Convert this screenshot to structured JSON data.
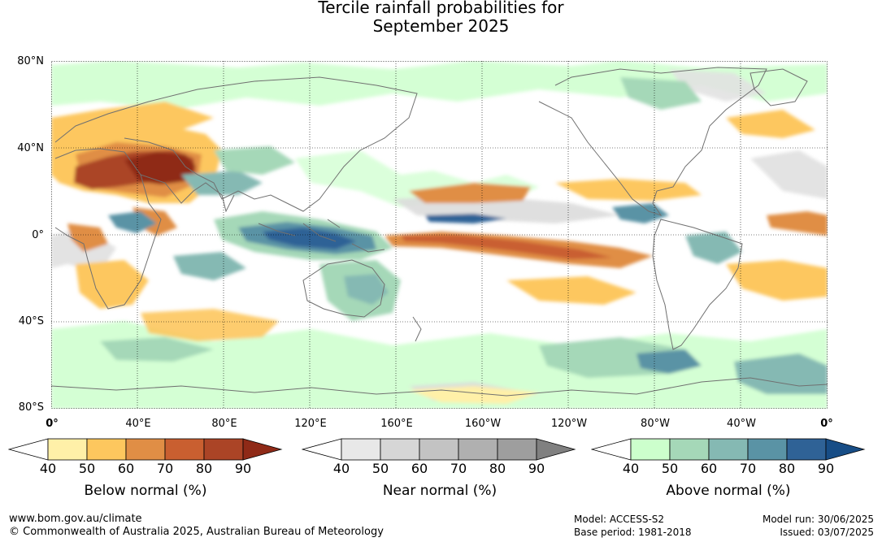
{
  "title": {
    "line1": "Tercile rainfall probabilities for",
    "line2": "September 2025"
  },
  "lat_labels": [
    "80°N",
    "40°N",
    "0°",
    "40°S",
    "80°S"
  ],
  "lon_labels": [
    "0°",
    "40°E",
    "80°E",
    "120°E",
    "160°E",
    "160°W",
    "120°W",
    "80°W",
    "40°W",
    "0°"
  ],
  "colors": {
    "below": [
      "#fff0a8",
      "#fdc75e",
      "#e08e45",
      "#c95f30",
      "#ab4426",
      "#8f2a17"
    ],
    "near": [
      "#e8e8e8",
      "#d6d6d6",
      "#c3c3c3",
      "#b0b0b0",
      "#9e9e9e",
      "#808080"
    ],
    "above": [
      "#ccffcc",
      "#a5d8b8",
      "#85b9b3",
      "#5a93a5",
      "#2f6296",
      "#174d86"
    ],
    "land_outline": "#707070"
  },
  "legends": [
    {
      "name": "below",
      "title": "Below normal (%)",
      "ticks": [
        "40",
        "50",
        "60",
        "70",
        "80",
        "90"
      ]
    },
    {
      "name": "near",
      "title": "Near normal (%)",
      "ticks": [
        "40",
        "50",
        "60",
        "70",
        "80",
        "90"
      ]
    },
    {
      "name": "above",
      "title": "Above normal (%)",
      "ticks": [
        "40",
        "50",
        "60",
        "70",
        "80",
        "90"
      ]
    }
  ],
  "footer": {
    "website": "www.bom.gov.au/climate",
    "copyright": "© Commonwealth of Australia 2025, Australian Bureau of Meteorology",
    "model": "Model: ACCESS-S2",
    "base_period": "Base period: 1981-2018",
    "model_run": "Model run: 30/06/2025",
    "issued": "Issued: 03/07/2025"
  }
}
